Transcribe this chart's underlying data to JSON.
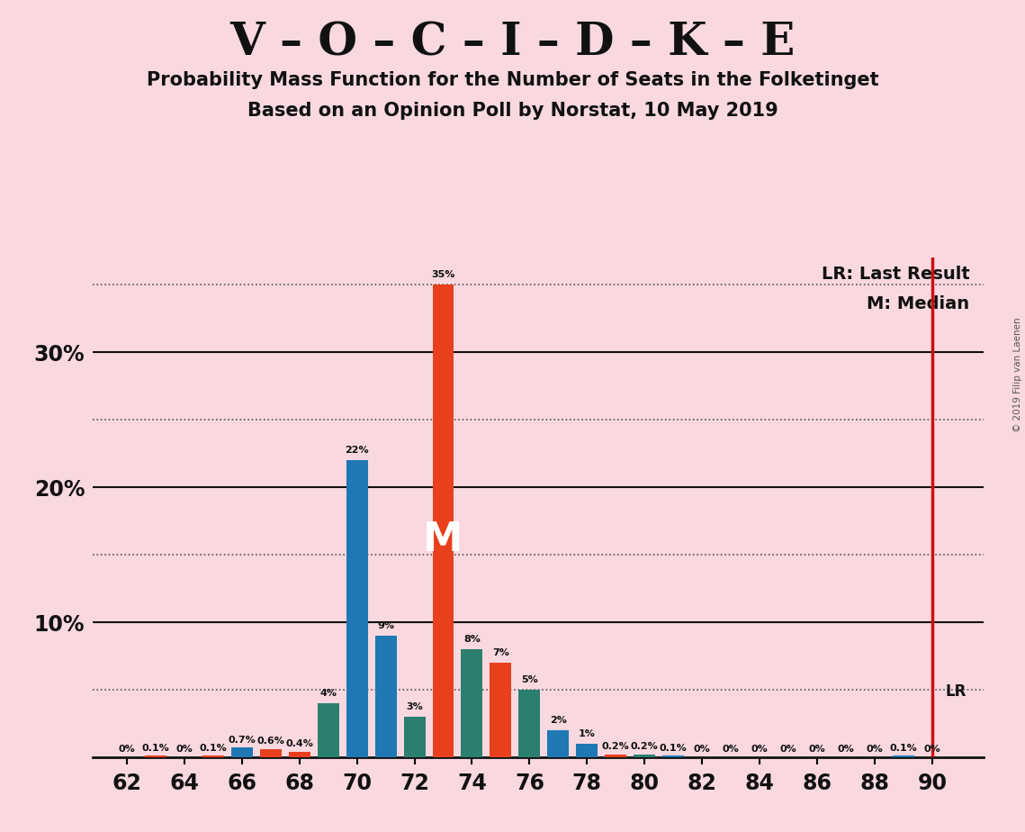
{
  "title": "V – O – C – I – D – K – E",
  "subtitle1": "Probability Mass Function for the Number of Seats in the Folketinget",
  "subtitle2": "Based on an Opinion Poll by Norstat, 10 May 2019",
  "background_color": "#f9d8e0",
  "seats": [
    62,
    63,
    64,
    65,
    66,
    67,
    68,
    69,
    70,
    71,
    72,
    73,
    74,
    75,
    76,
    77,
    78,
    79,
    80,
    81,
    82,
    83,
    84,
    85,
    86,
    87,
    88,
    89,
    90
  ],
  "values": [
    0.0,
    0.1,
    0.0,
    0.1,
    0.7,
    0.6,
    0.4,
    4.0,
    22.0,
    9.0,
    3.0,
    35.0,
    8.0,
    7.0,
    5.0,
    2.0,
    1.0,
    0.2,
    0.2,
    0.1,
    0.0,
    0.0,
    0.0,
    0.0,
    0.0,
    0.0,
    0.0,
    0.1,
    0.0
  ],
  "bar_colors": [
    "#1f77b4",
    "#e8401c",
    "#1f77b4",
    "#e8401c",
    "#1f77b4",
    "#e8401c",
    "#e8401c",
    "#2a7f6f",
    "#1f77b4",
    "#1f77b4",
    "#2a7f6f",
    "#e8401c",
    "#2a7f6f",
    "#e8401c",
    "#2a7f6f",
    "#1f77b4",
    "#1f77b4",
    "#e8401c",
    "#2a7f6f",
    "#1f77b4",
    "#1f77b4",
    "#1f77b4",
    "#1f77b4",
    "#1f77b4",
    "#1f77b4",
    "#1f77b4",
    "#1f77b4",
    "#1f77b4",
    "#e8401c"
  ],
  "median_seat": 73,
  "lr_seat": 90,
  "lr_level": 5.0,
  "legend_lr": "LR: Last Result",
  "legend_m": "M: Median",
  "copyright_text": "© 2019 Filip van Laenen",
  "ylim_max": 37,
  "bar_width": 0.75,
  "solid_hlines": [
    10,
    20,
    30
  ],
  "dotted_hlines": [
    5,
    15,
    25,
    35
  ],
  "xtick_start": 62,
  "xtick_end": 90,
  "xtick_step": 2
}
